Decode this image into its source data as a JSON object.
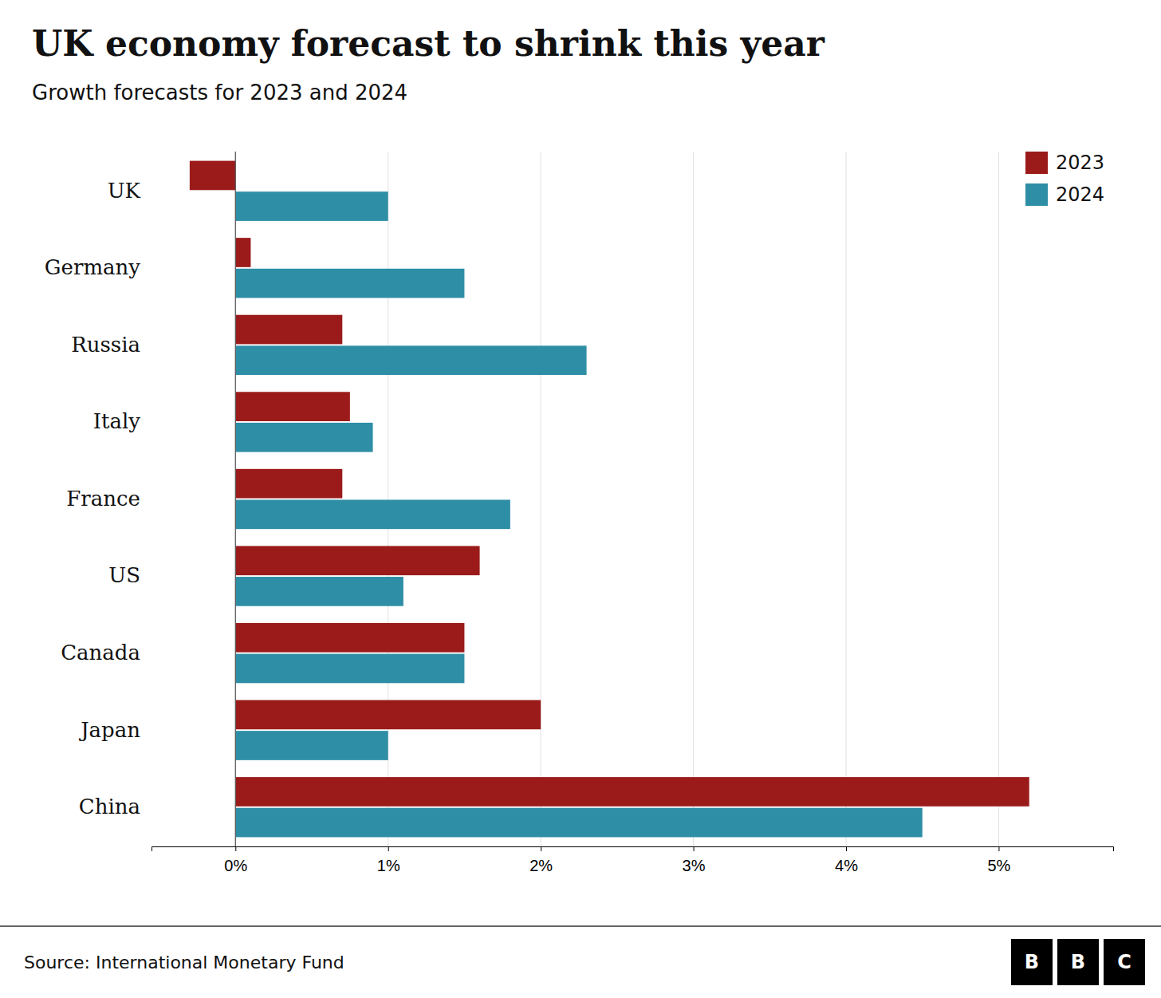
{
  "chart_data": {
    "type": "bar",
    "orientation": "horizontal",
    "title": "UK economy forecast to shrink this year",
    "subtitle": "Growth forecasts for 2023 and 2024",
    "source": "Source: International Monetary Fund",
    "logo": [
      "B",
      "B",
      "C"
    ],
    "categories": [
      "UK",
      "Germany",
      "Russia",
      "Italy",
      "France",
      "US",
      "Canada",
      "Japan",
      "China"
    ],
    "series": [
      {
        "name": "2023",
        "color": "#9B1B1B",
        "values": [
          -0.3,
          0.1,
          0.7,
          0.75,
          0.7,
          1.6,
          1.5,
          2.0,
          5.2
        ]
      },
      {
        "name": "2024",
        "color": "#2E8EA6",
        "values": [
          1.0,
          1.5,
          2.3,
          0.9,
          1.8,
          1.1,
          1.5,
          1.0,
          4.5
        ]
      }
    ],
    "xlim": [
      -0.55,
      5.75
    ],
    "xticks": [
      {
        "value": 0,
        "label": "0%"
      },
      {
        "value": 1,
        "label": "1%"
      },
      {
        "value": 2,
        "label": "2%"
      },
      {
        "value": 3,
        "label": "3%"
      },
      {
        "value": 4,
        "label": "4%"
      },
      {
        "value": 5,
        "label": "5%"
      }
    ],
    "grid": true,
    "legend": "upper right"
  }
}
